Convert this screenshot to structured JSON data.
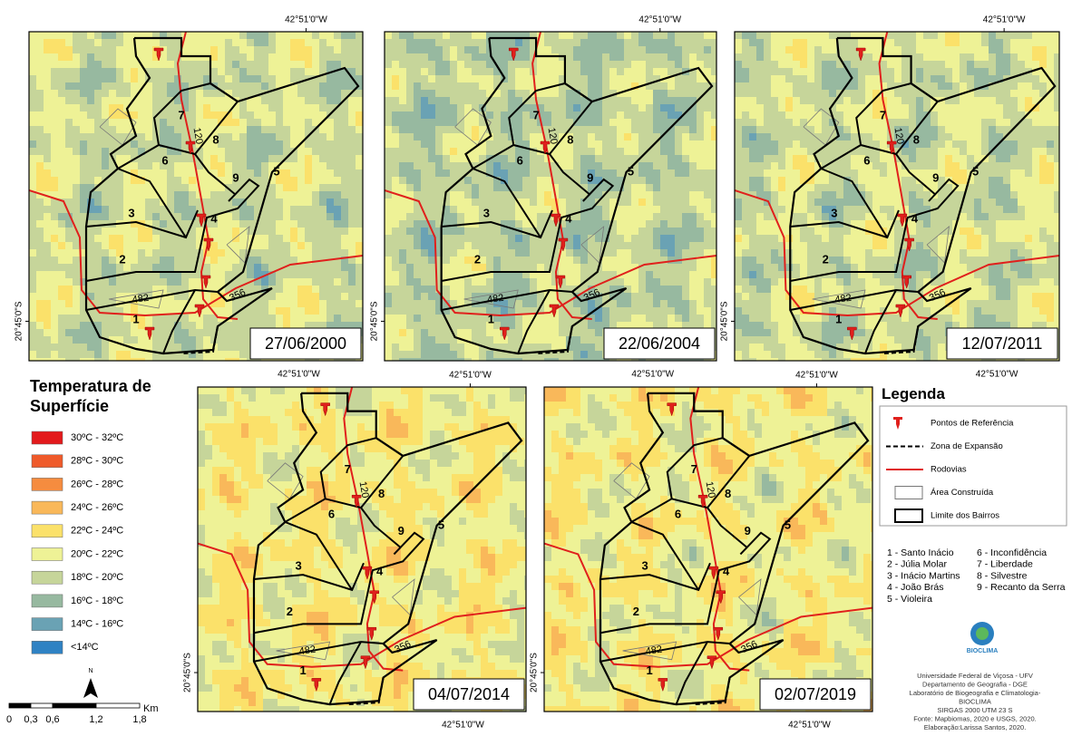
{
  "coordinates": {
    "longitude": "42°51'0\"W",
    "latitude": "20°45'0\"S"
  },
  "maps": [
    {
      "date": "27/06/2000"
    },
    {
      "date": "22/06/2004"
    },
    {
      "date": "12/07/2011"
    },
    {
      "date": "04/07/2014"
    },
    {
      "date": "02/07/2019"
    }
  ],
  "map_labels": {
    "neighborhood_numbers": [
      "1",
      "2",
      "3",
      "4",
      "5",
      "6",
      "7",
      "8",
      "9"
    ],
    "roads": [
      "482",
      "356",
      "120"
    ]
  },
  "temperature_legend": {
    "title": "Temperatura de Superfície",
    "classes": [
      {
        "label": "30ºC  - 32ºC",
        "color": "#e31a1c"
      },
      {
        "label": "28ºC  - 30ºC",
        "color": "#ef5a2a"
      },
      {
        "label": "26ºC  - 28ºC",
        "color": "#f58c3f"
      },
      {
        "label": "24ºC  - 26ºC",
        "color": "#f9b85a"
      },
      {
        "label": "22ºC  - 24ºC",
        "color": "#fbe16a"
      },
      {
        "label": "20ºC  - 22ºC",
        "color": "#eef296"
      },
      {
        "label": "18ºC  - 20ºC",
        "color": "#c6d59a"
      },
      {
        "label": "16ºC  - 18ºC",
        "color": "#97b9a0"
      },
      {
        "label": "14ºC  - 16ºC",
        "color": "#6aa2b4"
      },
      {
        "label": "<14ºC",
        "color": "#2f82c3"
      }
    ]
  },
  "scale_bar": {
    "ticks": [
      "0",
      "0,3",
      "0,6",
      "1,2",
      "1,8"
    ],
    "unit": "Km",
    "north": "N"
  },
  "legend": {
    "title": "Legenda",
    "items": [
      "Pontos de Referência",
      "Zona de Expansão",
      "Rodovias",
      "Área Construída",
      "Limite dos Bairros"
    ]
  },
  "neighborhoods": [
    "1 - Santo Inácio",
    "2 - Júlia Molar",
    "3 - Inácio Martins",
    "4 - João Brás",
    "5 - Violeira",
    "6 - Inconfidência",
    "7 - Liberdade",
    "8 - Silvestre",
    "9 - Recanto da Serra"
  ],
  "logo": "BIOCLIMA",
  "credits": [
    "Universidade Federal de Viçosa - UFV",
    "Departamento de Geografia - DGE",
    "Laboratório de Biogeografia e Climatologia-",
    "BIOCLIMA",
    "SIRGAS 2000 UTM 23 S",
    "Fonte: Mapbiomas, 2020 e USGS, 2020.",
    "Elaboração:Larissa Santos, 2020."
  ]
}
